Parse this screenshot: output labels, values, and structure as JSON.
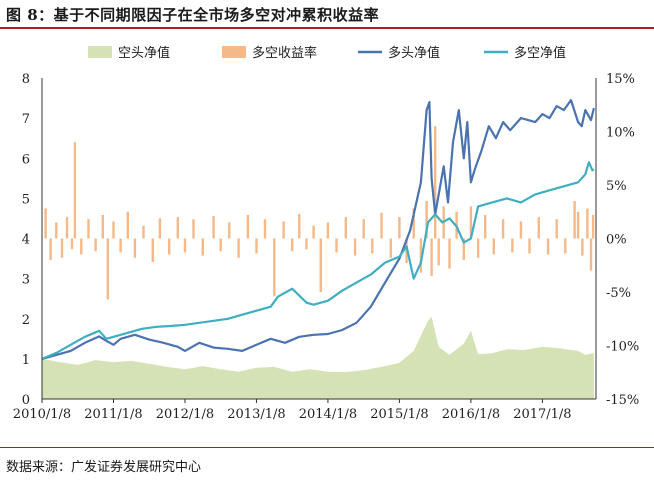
{
  "header": {
    "title": "图 8：基于不同期限因子在全市场多空对冲累积收益率"
  },
  "footer": {
    "source": "数据来源：广发证券发展研究中心"
  },
  "colors": {
    "accent_rule": "#b01c24",
    "short_nav": "#d5e2b6",
    "ls_return": "#f5b888",
    "long_nav": "#4a73b0",
    "ls_nav": "#3eaec0"
  },
  "chart_data": {
    "type": "line",
    "x_tick_labels": [
      "2010/1/8",
      "2011/1/8",
      "2012/1/8",
      "2013/1/8",
      "2014/1/8",
      "2015/1/8",
      "2016/1/8",
      "2017/1/8"
    ],
    "x_range": [
      "2010/1/8",
      "2017/9/30"
    ],
    "y_left": {
      "range": [
        0,
        8
      ],
      "ticks": [
        "0",
        "1",
        "2",
        "3",
        "4",
        "5",
        "6",
        "7",
        "8"
      ]
    },
    "y_right": {
      "range": [
        -15,
        15
      ],
      "unit": "%",
      "ticks": [
        "-15%",
        "-10%",
        "-5%",
        "0%",
        "5%",
        "10%",
        "15%"
      ]
    },
    "grid": false,
    "legend_position": "top",
    "legend": [
      "空头净值",
      "多空收益率",
      "多头净值",
      "多空净值"
    ],
    "series": [
      {
        "name": "空头净值",
        "type": "area",
        "axis": "left",
        "points": [
          [
            2010.0,
            1.0
          ],
          [
            2010.25,
            0.92
          ],
          [
            2010.5,
            0.85
          ],
          [
            2010.75,
            0.97
          ],
          [
            2011.0,
            0.92
          ],
          [
            2011.25,
            0.95
          ],
          [
            2011.5,
            0.88
          ],
          [
            2011.75,
            0.8
          ],
          [
            2012.0,
            0.74
          ],
          [
            2012.25,
            0.82
          ],
          [
            2012.5,
            0.74
          ],
          [
            2012.75,
            0.68
          ],
          [
            2013.0,
            0.78
          ],
          [
            2013.25,
            0.8
          ],
          [
            2013.5,
            0.68
          ],
          [
            2013.75,
            0.74
          ],
          [
            2014.0,
            0.68
          ],
          [
            2014.25,
            0.67
          ],
          [
            2014.5,
            0.72
          ],
          [
            2014.75,
            0.8
          ],
          [
            2015.0,
            0.9
          ],
          [
            2015.2,
            1.2
          ],
          [
            2015.4,
            1.95
          ],
          [
            2015.45,
            2.05
          ],
          [
            2015.55,
            1.3
          ],
          [
            2015.7,
            1.1
          ],
          [
            2015.9,
            1.38
          ],
          [
            2016.0,
            1.7
          ],
          [
            2016.1,
            1.12
          ],
          [
            2016.3,
            1.14
          ],
          [
            2016.5,
            1.24
          ],
          [
            2016.75,
            1.22
          ],
          [
            2017.0,
            1.3
          ],
          [
            2017.25,
            1.26
          ],
          [
            2017.5,
            1.2
          ],
          [
            2017.6,
            1.1
          ],
          [
            2017.72,
            1.15
          ]
        ]
      },
      {
        "name": "多空收益率",
        "type": "bar",
        "axis": "right",
        "points": [
          [
            2010.05,
            2.8
          ],
          [
            2010.12,
            -2.0
          ],
          [
            2010.2,
            1.5
          ],
          [
            2010.28,
            -1.8
          ],
          [
            2010.35,
            2.0
          ],
          [
            2010.42,
            -1.0
          ],
          [
            2010.46,
            9.0
          ],
          [
            2010.55,
            -1.5
          ],
          [
            2010.65,
            1.8
          ],
          [
            2010.75,
            -1.2
          ],
          [
            2010.85,
            2.2
          ],
          [
            2010.92,
            -5.7
          ],
          [
            2011.0,
            1.6
          ],
          [
            2011.1,
            -1.3
          ],
          [
            2011.2,
            2.5
          ],
          [
            2011.3,
            -1.8
          ],
          [
            2011.42,
            1.2
          ],
          [
            2011.55,
            -2.2
          ],
          [
            2011.65,
            1.9
          ],
          [
            2011.78,
            -1.5
          ],
          [
            2011.9,
            2.0
          ],
          [
            2012.0,
            -1.3
          ],
          [
            2012.12,
            1.8
          ],
          [
            2012.25,
            -1.6
          ],
          [
            2012.4,
            2.1
          ],
          [
            2012.5,
            -1.2
          ],
          [
            2012.62,
            1.5
          ],
          [
            2012.75,
            -1.8
          ],
          [
            2012.88,
            2.2
          ],
          [
            2013.0,
            -1.4
          ],
          [
            2013.12,
            1.8
          ],
          [
            2013.25,
            -5.4
          ],
          [
            2013.38,
            1.6
          ],
          [
            2013.5,
            -1.2
          ],
          [
            2013.6,
            2.3
          ],
          [
            2013.7,
            -1.0
          ],
          [
            2013.8,
            1.2
          ],
          [
            2013.9,
            -5.0
          ],
          [
            2014.0,
            1.5
          ],
          [
            2014.12,
            -1.3
          ],
          [
            2014.25,
            2.0
          ],
          [
            2014.38,
            -1.6
          ],
          [
            2014.5,
            1.8
          ],
          [
            2014.62,
            -1.4
          ],
          [
            2014.75,
            2.4
          ],
          [
            2014.88,
            -1.8
          ],
          [
            2015.0,
            2.0
          ],
          [
            2015.1,
            -2.3
          ],
          [
            2015.2,
            2.8
          ],
          [
            2015.3,
            -3.2
          ],
          [
            2015.38,
            3.5
          ],
          [
            2015.45,
            -3.5
          ],
          [
            2015.5,
            10.5
          ],
          [
            2015.55,
            -2.5
          ],
          [
            2015.62,
            3.0
          ],
          [
            2015.7,
            -2.8
          ],
          [
            2015.8,
            2.5
          ],
          [
            2015.9,
            -2.0
          ],
          [
            2016.0,
            3.0
          ],
          [
            2016.1,
            -1.8
          ],
          [
            2016.2,
            2.2
          ],
          [
            2016.32,
            -1.5
          ],
          [
            2016.45,
            1.8
          ],
          [
            2016.58,
            -1.3
          ],
          [
            2016.7,
            1.6
          ],
          [
            2016.82,
            -1.4
          ],
          [
            2016.95,
            2.0
          ],
          [
            2017.08,
            -1.5
          ],
          [
            2017.2,
            1.8
          ],
          [
            2017.32,
            -1.4
          ],
          [
            2017.45,
            3.5
          ],
          [
            2017.5,
            2.5
          ],
          [
            2017.56,
            -1.6
          ],
          [
            2017.63,
            2.8
          ],
          [
            2017.68,
            -3.0
          ],
          [
            2017.71,
            2.2
          ]
        ]
      },
      {
        "name": "多头净值",
        "type": "line",
        "axis": "left",
        "points": [
          [
            2010.0,
            1.0
          ],
          [
            2010.2,
            1.1
          ],
          [
            2010.4,
            1.2
          ],
          [
            2010.6,
            1.4
          ],
          [
            2010.8,
            1.56
          ],
          [
            2010.9,
            1.45
          ],
          [
            2011.0,
            1.35
          ],
          [
            2011.1,
            1.5
          ],
          [
            2011.3,
            1.6
          ],
          [
            2011.5,
            1.48
          ],
          [
            2011.7,
            1.4
          ],
          [
            2011.9,
            1.3
          ],
          [
            2012.0,
            1.2
          ],
          [
            2012.2,
            1.4
          ],
          [
            2012.4,
            1.28
          ],
          [
            2012.6,
            1.25
          ],
          [
            2012.8,
            1.2
          ],
          [
            2013.0,
            1.35
          ],
          [
            2013.2,
            1.5
          ],
          [
            2013.4,
            1.4
          ],
          [
            2013.6,
            1.55
          ],
          [
            2013.8,
            1.6
          ],
          [
            2014.0,
            1.62
          ],
          [
            2014.2,
            1.72
          ],
          [
            2014.4,
            1.9
          ],
          [
            2014.6,
            2.3
          ],
          [
            2014.8,
            2.9
          ],
          [
            2015.0,
            3.5
          ],
          [
            2015.15,
            4.2
          ],
          [
            2015.3,
            5.4
          ],
          [
            2015.38,
            7.2
          ],
          [
            2015.42,
            7.4
          ],
          [
            2015.45,
            5.5
          ],
          [
            2015.5,
            4.6
          ],
          [
            2015.55,
            5.1
          ],
          [
            2015.62,
            5.8
          ],
          [
            2015.68,
            4.9
          ],
          [
            2015.75,
            6.4
          ],
          [
            2015.83,
            7.2
          ],
          [
            2015.9,
            6.0
          ],
          [
            2015.95,
            6.9
          ],
          [
            2016.0,
            5.4
          ],
          [
            2016.05,
            5.7
          ],
          [
            2016.15,
            6.2
          ],
          [
            2016.25,
            6.8
          ],
          [
            2016.35,
            6.5
          ],
          [
            2016.45,
            6.9
          ],
          [
            2016.55,
            6.7
          ],
          [
            2016.7,
            7.0
          ],
          [
            2016.9,
            6.9
          ],
          [
            2017.0,
            7.1
          ],
          [
            2017.1,
            7.0
          ],
          [
            2017.2,
            7.3
          ],
          [
            2017.3,
            7.2
          ],
          [
            2017.4,
            7.45
          ],
          [
            2017.5,
            6.9
          ],
          [
            2017.55,
            6.8
          ],
          [
            2017.6,
            7.2
          ],
          [
            2017.68,
            6.95
          ],
          [
            2017.72,
            7.25
          ]
        ]
      },
      {
        "name": "多空净值",
        "type": "line",
        "axis": "left",
        "points": [
          [
            2010.0,
            1.0
          ],
          [
            2010.2,
            1.15
          ],
          [
            2010.4,
            1.35
          ],
          [
            2010.6,
            1.55
          ],
          [
            2010.8,
            1.7
          ],
          [
            2010.9,
            1.5
          ],
          [
            2011.0,
            1.55
          ],
          [
            2011.2,
            1.65
          ],
          [
            2011.4,
            1.75
          ],
          [
            2011.6,
            1.8
          ],
          [
            2011.8,
            1.82
          ],
          [
            2012.0,
            1.85
          ],
          [
            2012.2,
            1.9
          ],
          [
            2012.4,
            1.95
          ],
          [
            2012.6,
            2.0
          ],
          [
            2012.8,
            2.1
          ],
          [
            2013.0,
            2.2
          ],
          [
            2013.2,
            2.3
          ],
          [
            2013.3,
            2.55
          ],
          [
            2013.5,
            2.75
          ],
          [
            2013.7,
            2.4
          ],
          [
            2013.8,
            2.35
          ],
          [
            2014.0,
            2.45
          ],
          [
            2014.2,
            2.7
          ],
          [
            2014.4,
            2.9
          ],
          [
            2014.6,
            3.1
          ],
          [
            2014.8,
            3.4
          ],
          [
            2015.0,
            3.55
          ],
          [
            2015.1,
            3.8
          ],
          [
            2015.2,
            3.0
          ],
          [
            2015.3,
            3.4
          ],
          [
            2015.4,
            4.4
          ],
          [
            2015.5,
            4.6
          ],
          [
            2015.6,
            4.4
          ],
          [
            2015.7,
            4.5
          ],
          [
            2015.8,
            4.3
          ],
          [
            2015.9,
            3.9
          ],
          [
            2016.0,
            4.0
          ],
          [
            2016.1,
            4.8
          ],
          [
            2016.3,
            4.9
          ],
          [
            2016.5,
            5.0
          ],
          [
            2016.7,
            4.9
          ],
          [
            2016.9,
            5.1
          ],
          [
            2017.1,
            5.2
          ],
          [
            2017.3,
            5.3
          ],
          [
            2017.5,
            5.4
          ],
          [
            2017.6,
            5.6
          ],
          [
            2017.65,
            5.9
          ],
          [
            2017.7,
            5.7
          ],
          [
            2017.72,
            5.72
          ]
        ]
      }
    ]
  }
}
